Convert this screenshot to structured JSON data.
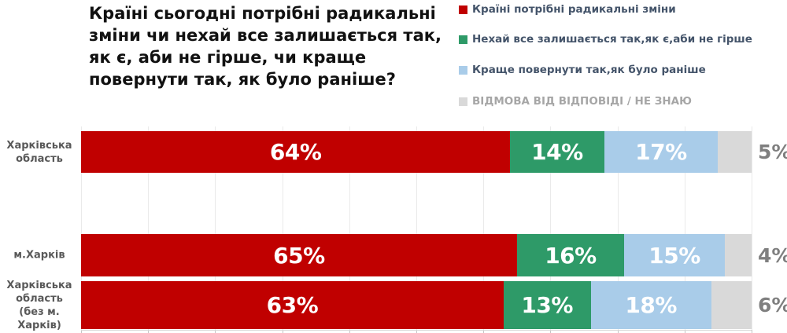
{
  "title": {
    "full": "Країні сьогодні потрібні радикальні зміни чи нехай все залишається так, як є, аби не гірше, чи краще повернути так, як було раніше?",
    "lines": [
      "Країні сьогодні потрібні радикальні",
      "зміни чи нехай все залишається так,",
      "як є, аби не гірше, чи краще",
      "повернути так, як було раніше?"
    ]
  },
  "legend": {
    "items": [
      {
        "label": "Країні потрібні радикальні зміни",
        "color": "#C00000",
        "text_color": "#44546A"
      },
      {
        "label": "Нехай все залишається так,як є,аби не гірше",
        "color": "#2E9A68",
        "text_color": "#44546A"
      },
      {
        "label": "Краще повернути так,як було раніше",
        "color": "#A9CCE9",
        "text_color": "#44546A"
      },
      {
        "label": "ВІДМОВА ВІД ВІДПОВІДІ / НЕ ЗНАЮ",
        "color": "#D9D9D9",
        "text_color": "#A6A6A6"
      }
    ]
  },
  "chart_data": {
    "type": "bar",
    "orientation": "horizontal",
    "stacked": true,
    "title": "Країні сьогодні потрібні радикальні зміни чи нехай все залишається так, як є, аби не гірше, чи краще повернути так, як було раніше?",
    "categories": [
      "Харківська область",
      "м.Харків",
      "Харківська область (без м. Харків)"
    ],
    "category_label_lines": [
      [
        "Харківська",
        "область"
      ],
      [
        "м.Харків"
      ],
      [
        "Харківська",
        "область",
        "(без м.",
        "Харків)"
      ]
    ],
    "series": [
      {
        "name": "Країні потрібні радикальні зміни",
        "color": "#C00000",
        "values": [
          64,
          65,
          63
        ]
      },
      {
        "name": "Нехай все залишається так,як є,аби не гірше",
        "color": "#2E9A68",
        "values": [
          14,
          16,
          13
        ]
      },
      {
        "name": "Краще повернути так,як було раніше",
        "color": "#A9CCE9",
        "values": [
          17,
          15,
          18
        ]
      },
      {
        "name": "ВІДМОВА ВІД ВІДПОВІДІ / НЕ ЗНАЮ",
        "color": "#D9D9D9",
        "values": [
          5,
          4,
          6
        ]
      }
    ],
    "value_suffix": "%",
    "xlim": [
      0,
      100
    ],
    "gridline_step": 10,
    "grid": true,
    "legend_position": "top-right",
    "value_label_style": "white bold inside segments; last series labeled outside right in gray"
  },
  "colors": {
    "series_red": "#C00000",
    "series_green": "#2E9A68",
    "series_blue": "#A9CCE9",
    "series_gray": "#D9D9D9",
    "title_text": "#111111",
    "category_text": "#595959",
    "outside_value_text": "#7F7F7F",
    "legend_text": "#44546A",
    "legend_muted_text": "#A6A6A6",
    "gridline": "#EAEAEA",
    "axis": "#D9D9D9"
  }
}
